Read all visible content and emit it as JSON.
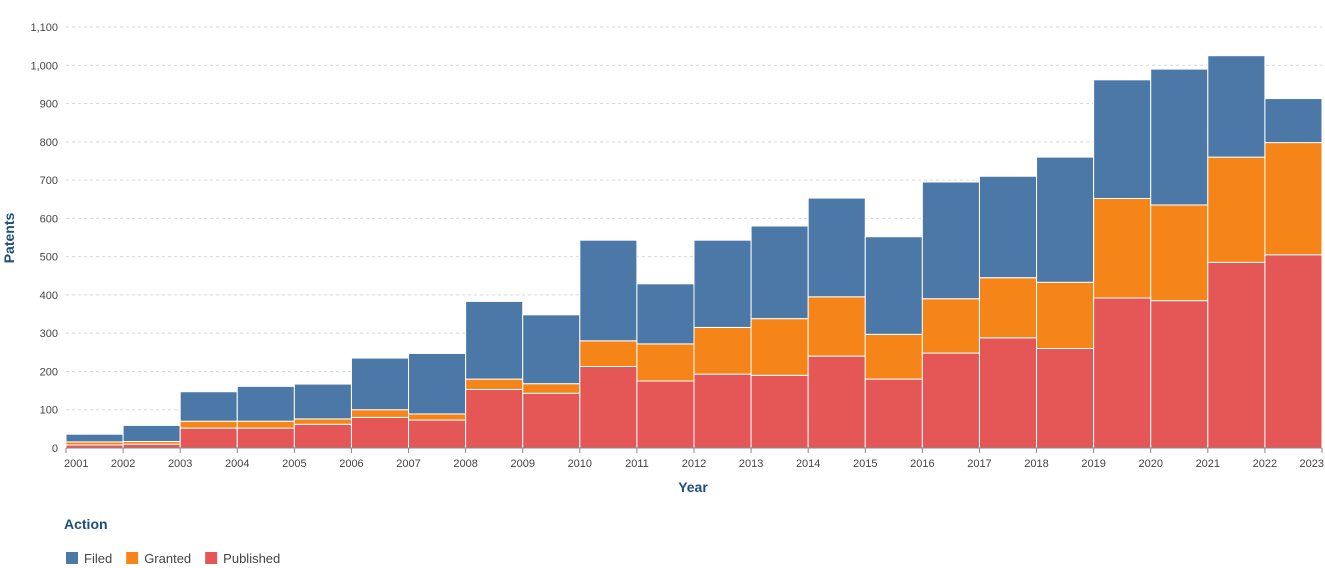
{
  "chart_data": {
    "type": "bar",
    "stacked": true,
    "xlabel": "Year",
    "ylabel": "Patents",
    "ylim": [
      0,
      1100
    ],
    "yticks": [
      "0",
      "100",
      "200",
      "300",
      "400",
      "500",
      "600",
      "700",
      "800",
      "900",
      "1,000",
      "1,100"
    ],
    "ytick_values": [
      0,
      100,
      200,
      300,
      400,
      500,
      600,
      700,
      800,
      900,
      1000,
      1100
    ],
    "xticks": [
      "2001",
      "2002",
      "2003",
      "2004",
      "2005",
      "2006",
      "2007",
      "2008",
      "2009",
      "2010",
      "2011",
      "2012",
      "2013",
      "2014",
      "2015",
      "2016",
      "2017",
      "2018",
      "2019",
      "2020",
      "2021",
      "2022",
      "2023"
    ],
    "categories": [
      "2001",
      "2002",
      "2003",
      "2004",
      "2005",
      "2006",
      "2007",
      "2008",
      "2009",
      "2010",
      "2011",
      "2012",
      "2013",
      "2014",
      "2015",
      "2016",
      "2017",
      "2018",
      "2019",
      "2020",
      "2021",
      "2022"
    ],
    "legend_title": "Action",
    "legend_position": "bottom-left",
    "series": [
      {
        "name": "Published",
        "color": "#e45756",
        "values": [
          8,
          10,
          52,
          52,
          62,
          80,
          73,
          153,
          143,
          213,
          175,
          193,
          190,
          240,
          180,
          248,
          288,
          260,
          392,
          385,
          485,
          505
        ]
      },
      {
        "name": "Granted",
        "color": "#f58518",
        "values": [
          8,
          7,
          18,
          18,
          14,
          20,
          16,
          27,
          25,
          67,
          97,
          122,
          148,
          155,
          117,
          142,
          157,
          173,
          260,
          250,
          275,
          293
        ]
      },
      {
        "name": "Filed",
        "color": "#4c78a8",
        "values": [
          20,
          42,
          77,
          91,
          91,
          135,
          158,
          203,
          180,
          263,
          157,
          228,
          242,
          258,
          255,
          305,
          265,
          327,
          310,
          355,
          265,
          115
        ]
      }
    ],
    "legend_order": [
      "Filed",
      "Granted",
      "Published"
    ]
  }
}
